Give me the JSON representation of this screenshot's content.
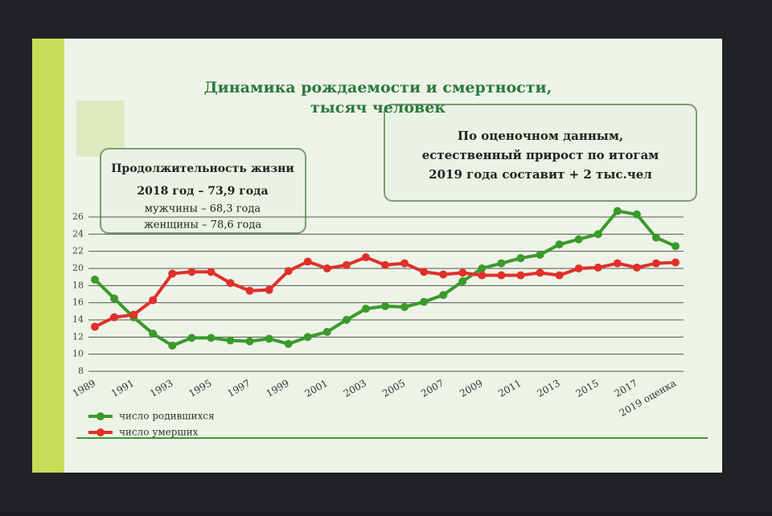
{
  "chart_data": {
    "type": "line",
    "title": [
      "Динамика рождаемости и смертности,",
      "тысяч человек"
    ],
    "info_left": [
      "Продолжительность жизни",
      "2018 год – 73,9 года",
      "мужчины – 68,3 года",
      "женщины – 78,6 года"
    ],
    "info_right": [
      "По оценочном данным,",
      "естественный прирост по итогам",
      "2019 года составит + 2 тыс.чел"
    ],
    "categories": [
      "1989",
      null,
      "1991",
      null,
      "1993",
      null,
      "1995",
      null,
      "1997",
      null,
      "1999",
      null,
      "2001",
      null,
      "2003",
      null,
      "2005",
      null,
      "2007",
      null,
      "2009",
      null,
      "2011",
      null,
      "2013",
      null,
      "2015",
      null,
      "2017",
      null,
      "2019 оценка"
    ],
    "series": [
      {
        "name": "число родившихся",
        "color": "#3a9a2a",
        "values": [
          18.7,
          16.5,
          14.3,
          12.4,
          11.0,
          11.9,
          11.9,
          11.6,
          11.5,
          11.8,
          11.2,
          12.0,
          12.6,
          14.0,
          15.3,
          15.6,
          15.5,
          16.1,
          16.9,
          18.5,
          20.0,
          20.6,
          21.2,
          21.6,
          22.8,
          23.4,
          24.0,
          26.7,
          26.3,
          23.6,
          22.6
        ]
      },
      {
        "name": "число умерших",
        "color": "#e0302a",
        "values": [
          13.2,
          14.3,
          14.6,
          16.3,
          19.4,
          19.6,
          19.6,
          18.3,
          17.4,
          17.5,
          19.7,
          20.8,
          20.0,
          20.4,
          21.3,
          20.4,
          20.6,
          19.6,
          19.3,
          19.5,
          19.2,
          19.2,
          19.2,
          19.5,
          19.2,
          20.0,
          20.1,
          20.6,
          20.1,
          20.6,
          20.7
        ]
      }
    ],
    "ylim": [
      8,
      26
    ],
    "yticks": [
      8,
      10,
      12,
      14,
      16,
      18,
      20,
      22,
      24,
      26
    ],
    "grid": true
  }
}
